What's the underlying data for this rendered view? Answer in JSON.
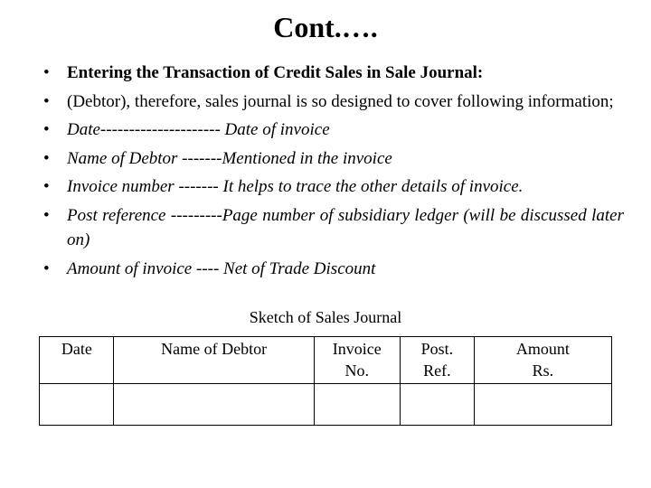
{
  "title": "Cont.….",
  "bullets": [
    {
      "bold": true,
      "italic": false,
      "text": "Entering the Transaction of Credit Sales in Sale Journal:"
    },
    {
      "bold": false,
      "italic": false,
      "text": "(Debtor), therefore, sales journal is so designed to cover following information;"
    },
    {
      "bold": false,
      "italic": true,
      "text": "Date--------------------- Date of invoice"
    },
    {
      "bold": false,
      "italic": true,
      "text": "Name of Debtor -------Mentioned in the invoice"
    },
    {
      "bold": false,
      "italic": true,
      "text": "Invoice number ------- It helps to trace the other details of invoice."
    },
    {
      "bold": false,
      "italic": true,
      "text": "Post reference ---------Page number of subsidiary ledger (will be discussed later on)"
    },
    {
      "bold": false,
      "italic": true,
      "text": "Amount of invoice ---- Net of Trade Discount"
    }
  ],
  "table": {
    "caption": "Sketch of Sales Journal",
    "columns": [
      {
        "line1": "Date",
        "line2": ""
      },
      {
        "line1": "Name of Debtor",
        "line2": ""
      },
      {
        "line1": "Invoice",
        "line2": "No."
      },
      {
        "line1": "Post.",
        "line2": "Ref."
      },
      {
        "line1": "Amount",
        "line2": "Rs."
      }
    ],
    "body_rows": 1
  },
  "colors": {
    "text": "#000000",
    "background": "#ffffff",
    "border": "#000000"
  },
  "fonts": {
    "family": "Times New Roman",
    "title_size_pt": 32,
    "body_size_pt": 19,
    "table_size_pt": 18
  }
}
